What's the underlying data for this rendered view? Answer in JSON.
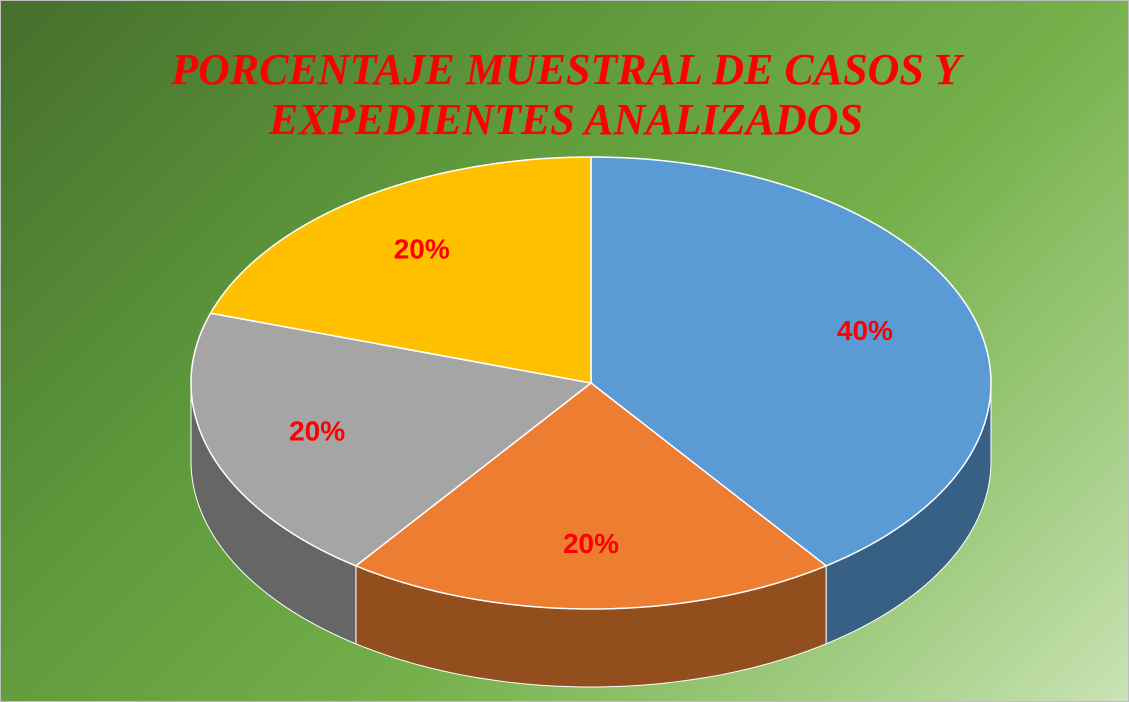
{
  "chart_data": {
    "type": "pie3d",
    "title": "PORCENTAJE MUESTRAL DE CASOS Y EXPEDIENTES ANALIZADOS",
    "values": [
      40,
      20,
      20,
      20
    ],
    "value_labels": [
      "40%",
      "20%",
      "20%",
      "20%"
    ],
    "colors": [
      "#5b9bd5",
      "#ed7d31",
      "#a5a5a5",
      "#ffc000"
    ]
  }
}
